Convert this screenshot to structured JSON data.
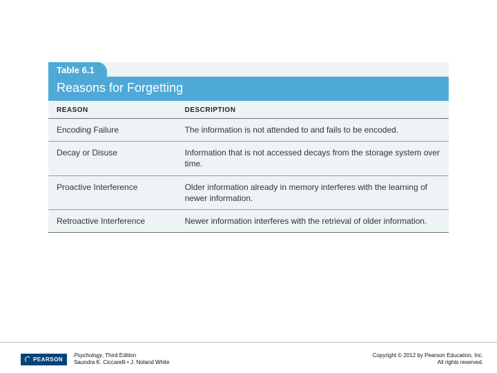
{
  "table": {
    "label": "Table 6.1",
    "title": "Reasons for Forgetting",
    "columns": [
      "REASON",
      "DESCRIPTION"
    ],
    "rows": [
      [
        "Encoding Failure",
        "The information is not attended to and fails to be encoded."
      ],
      [
        "Decay or Disuse",
        "Information that is not accessed decays from the storage system over time."
      ],
      [
        "Proactive Interference",
        "Older information already in memory interferes with the learning of newer information."
      ],
      [
        "Retroactive Interference",
        "Newer information interferes with the retrieval of older information."
      ]
    ],
    "header_bg": "#4fa9d6",
    "body_bg": "#eef3f5"
  },
  "footer": {
    "logo_text": "PEARSON",
    "book_title": "Psychology",
    "edition": ", Third Edition",
    "authors": "Saundra K. Ciccarelli • J. Noland White",
    "copyright_line1": "Copyright © 2012 by Pearson Education, Inc.",
    "copyright_line2": "All rights reserved."
  }
}
